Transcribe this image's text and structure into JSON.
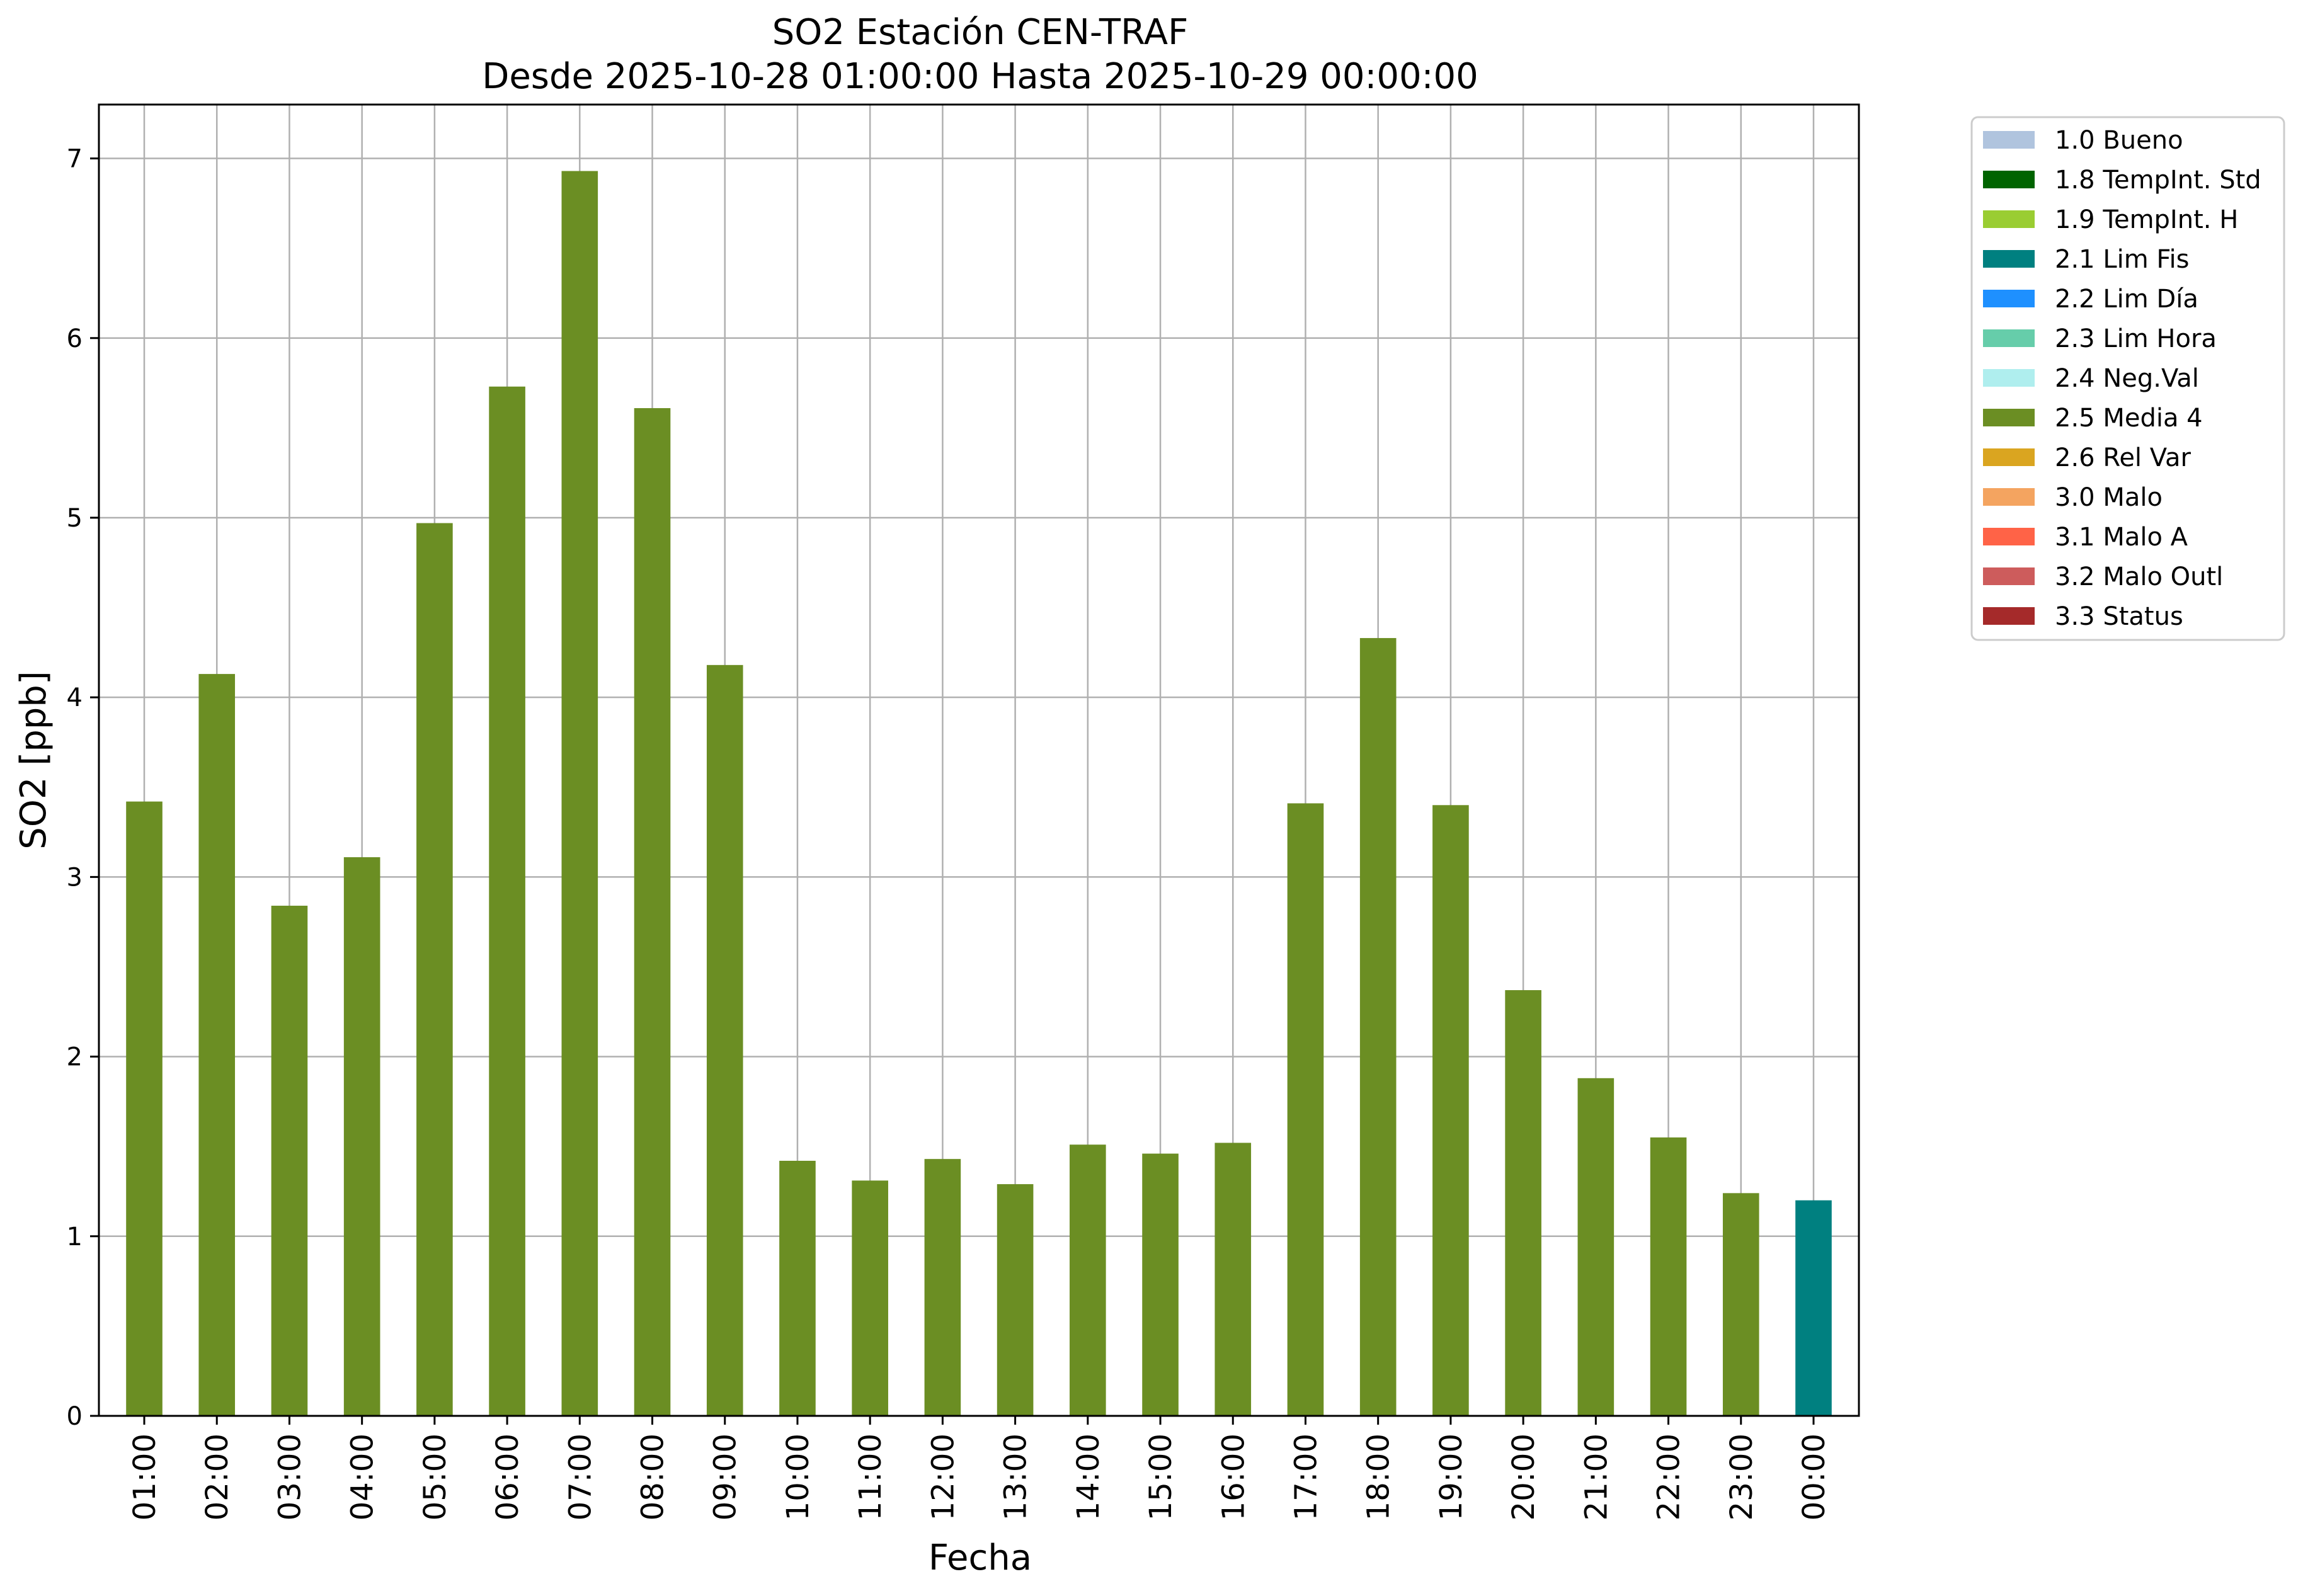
{
  "chart_data": {
    "type": "bar",
    "title": "SO2 Estación CEN-TRAF",
    "subtitle": "Desde 2025-10-28 01:00:00 Hasta 2025-10-29 00:00:00",
    "xlabel": "Fecha",
    "ylabel": "SO2 [ppb]",
    "ylim": [
      0,
      7.3
    ],
    "yticks": [
      "0",
      "1",
      "2",
      "3",
      "4",
      "5",
      "6",
      "7"
    ],
    "grid": true,
    "legend_position": "outside-top-right",
    "categories": [
      "01:00",
      "02:00",
      "03:00",
      "04:00",
      "05:00",
      "06:00",
      "07:00",
      "08:00",
      "09:00",
      "10:00",
      "11:00",
      "12:00",
      "13:00",
      "14:00",
      "15:00",
      "16:00",
      "17:00",
      "18:00",
      "19:00",
      "20:00",
      "21:00",
      "22:00",
      "23:00",
      "00:00"
    ],
    "values": [
      3.42,
      4.13,
      2.84,
      3.11,
      4.97,
      5.73,
      6.93,
      5.61,
      4.18,
      1.42,
      1.31,
      1.43,
      1.29,
      1.51,
      1.46,
      1.52,
      3.41,
      4.33,
      3.4,
      2.37,
      1.88,
      1.55,
      1.24,
      1.2
    ],
    "flags": [
      "2.5",
      "2.5",
      "2.5",
      "2.5",
      "2.5",
      "2.5",
      "2.5",
      "2.5",
      "2.5",
      "2.5",
      "2.5",
      "2.5",
      "2.5",
      "2.5",
      "2.5",
      "2.5",
      "2.5",
      "2.5",
      "2.5",
      "2.5",
      "2.5",
      "2.5",
      "2.5",
      "2.1"
    ],
    "legend": [
      {
        "code": "1.0",
        "label": "1.0 Bueno",
        "color": "#b0c4de"
      },
      {
        "code": "1.8",
        "label": "1.8 TempInt. Std",
        "color": "#006400"
      },
      {
        "code": "1.9",
        "label": "1.9 TempInt. H",
        "color": "#9acd32"
      },
      {
        "code": "2.1",
        "label": "2.1 Lim Fis",
        "color": "#008080"
      },
      {
        "code": "2.2",
        "label": "2.2 Lim Día",
        "color": "#1e90ff"
      },
      {
        "code": "2.3",
        "label": "2.3 Lim Hora",
        "color": "#66cdaa"
      },
      {
        "code": "2.4",
        "label": "2.4 Neg.Val",
        "color": "#afeeee"
      },
      {
        "code": "2.5",
        "label": "2.5 Media 4",
        "color": "#6b8e23"
      },
      {
        "code": "2.6",
        "label": "2.6 Rel Var",
        "color": "#daa520"
      },
      {
        "code": "3.0",
        "label": "3.0 Malo",
        "color": "#f4a460"
      },
      {
        "code": "3.1",
        "label": "3.1 Malo A",
        "color": "#ff6347"
      },
      {
        "code": "3.2",
        "label": "3.2 Malo Outl",
        "color": "#cd5c5c"
      },
      {
        "code": "3.3",
        "label": "3.3 Status",
        "color": "#a52a2a"
      }
    ]
  }
}
